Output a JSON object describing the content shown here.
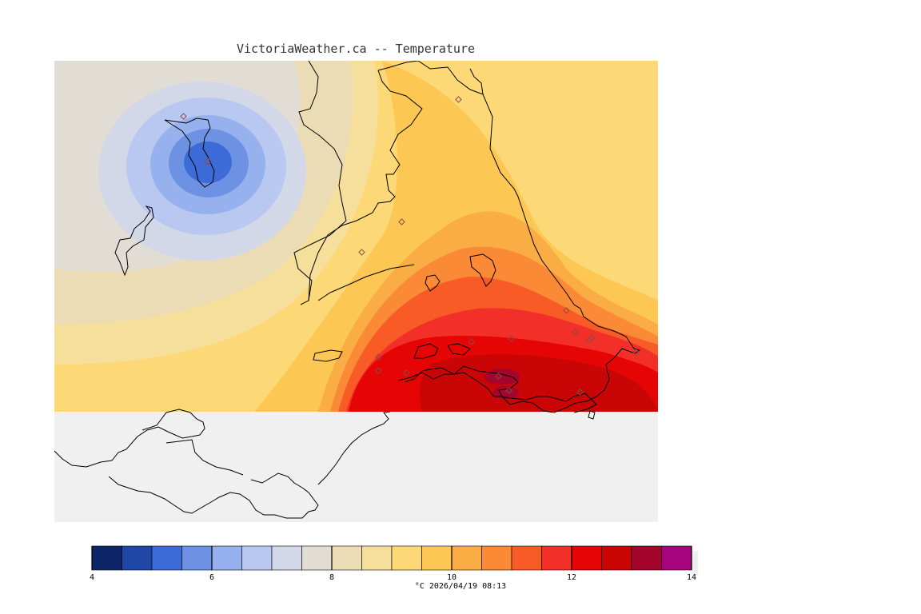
{
  "title": "VictoriaWeather.ca -- Temperature",
  "timestamp_label": "°C  2026/04/19 08:13",
  "colorbar": {
    "min": 4,
    "max": 14,
    "step": 0.5,
    "tick_labels": [
      "4",
      "6",
      "8",
      "10",
      "12",
      "14"
    ],
    "colors": [
      "#0d2566",
      "#1f48a6",
      "#3d6cd8",
      "#6d92e4",
      "#97b1ee",
      "#b8c8f0",
      "#d3d8e8",
      "#e2ddd4",
      "#ecdcb6",
      "#f6df9a",
      "#fcd877",
      "#fcc752",
      "#fbad45",
      "#fa8a35",
      "#f95b27",
      "#f23029",
      "#e60505",
      "#c90505",
      "#a3052c",
      "#a6047d"
    ]
  },
  "colors": {
    "ocean": "#f0f0f0",
    "no_data": "#ffffff",
    "station_marker": "#a86a6a"
  },
  "stations_count": 18
}
